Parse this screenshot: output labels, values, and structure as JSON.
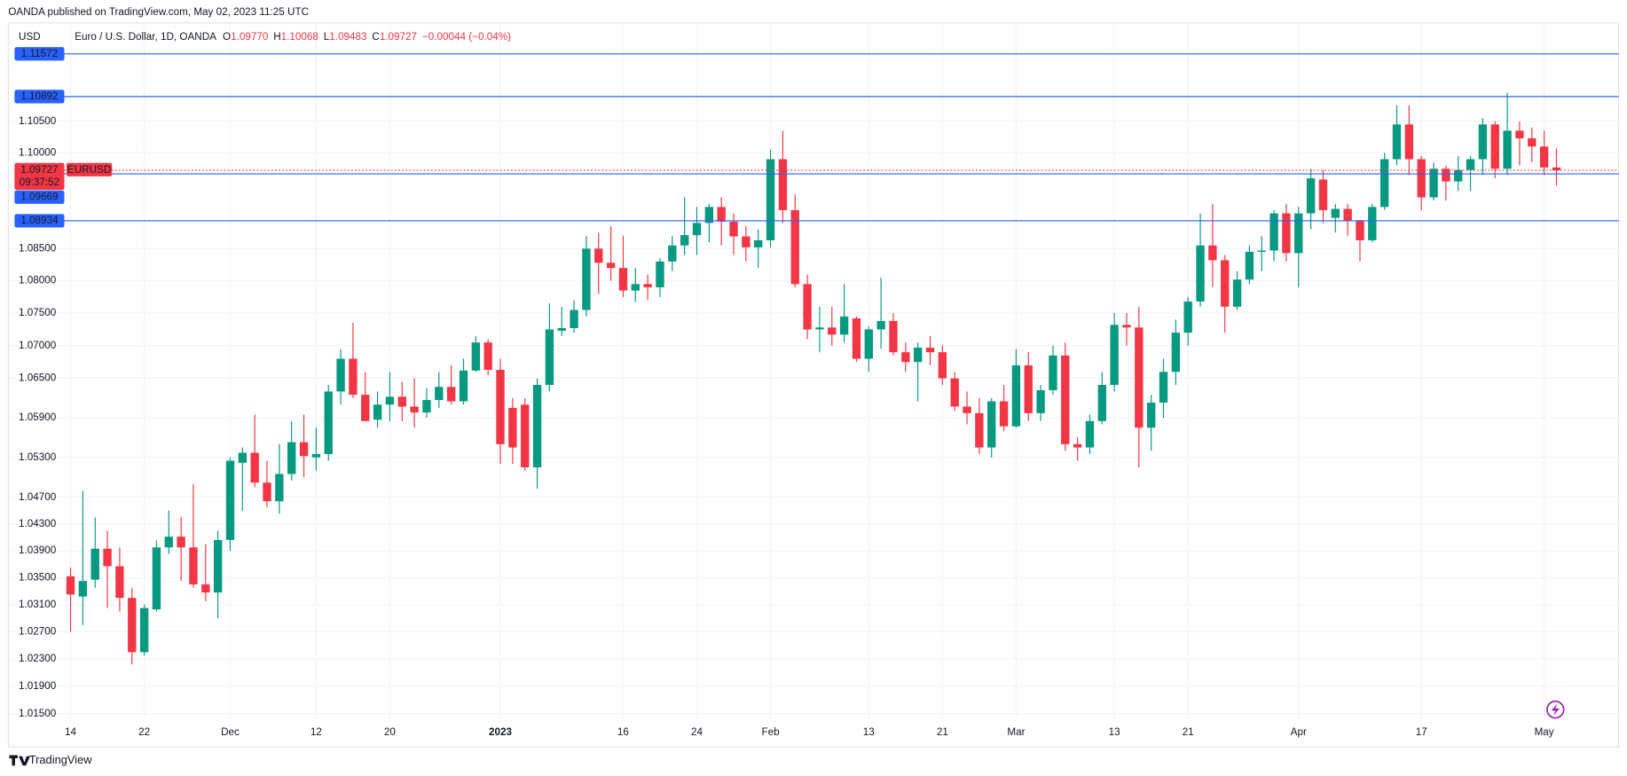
{
  "header": "OANDA published on TradingView.com, May 02, 2023 11:25 UTC",
  "footer": "TradingView",
  "chart_data": {
    "type": "candlestick",
    "currency": "USD",
    "symbol": "Euro / U.S. Dollar, 1D, OANDA",
    "legend": {
      "names": [
        "O",
        "H",
        "L",
        "C"
      ],
      "values": [
        1.0977,
        1.10068,
        1.09483,
        1.09727
      ],
      "value_labels": [
        "1.09770",
        "1.10068",
        "1.09483",
        "1.09727"
      ],
      "change": "−0.00044 (−0.04%)"
    },
    "up_color": "#089981",
    "down_color": "#f23645",
    "log_scale": true,
    "grid": true,
    "ylim": [
      1.0147,
      1.1177
    ],
    "yticks": [
      {
        "value": 1.015,
        "label": "1.01500"
      },
      {
        "value": 1.019,
        "label": "1.01900"
      },
      {
        "value": 1.023,
        "label": "1.02300"
      },
      {
        "value": 1.027,
        "label": "1.02700"
      },
      {
        "value": 1.031,
        "label": "1.03100"
      },
      {
        "value": 1.035,
        "label": "1.03500"
      },
      {
        "value": 1.039,
        "label": "1.03900"
      },
      {
        "value": 1.043,
        "label": "1.04300"
      },
      {
        "value": 1.047,
        "label": "1.04700"
      },
      {
        "value": 1.053,
        "label": "1.05300"
      },
      {
        "value": 1.059,
        "label": "1.05900"
      },
      {
        "value": 1.065,
        "label": "1.06500"
      },
      {
        "value": 1.07,
        "label": "1.07000"
      },
      {
        "value": 1.075,
        "label": "1.07500"
      },
      {
        "value": 1.08,
        "label": "1.08000"
      },
      {
        "value": 1.085,
        "label": "1.08500"
      },
      {
        "value": 1.1,
        "label": "1.10000"
      },
      {
        "value": 1.105,
        "label": "1.10500"
      }
    ],
    "categories": [
      "14",
      null,
      null,
      null,
      null,
      null,
      "22",
      null,
      null,
      null,
      null,
      null,
      null,
      "Dec",
      null,
      null,
      null,
      null,
      null,
      null,
      "12",
      null,
      null,
      null,
      null,
      null,
      "20",
      null,
      null,
      null,
      null,
      null,
      null,
      null,
      null,
      "2023",
      null,
      null,
      null,
      null,
      null,
      null,
      null,
      null,
      null,
      "16",
      null,
      null,
      null,
      null,
      null,
      "24",
      null,
      null,
      null,
      null,
      null,
      "Feb",
      null,
      null,
      null,
      null,
      null,
      null,
      null,
      "13",
      null,
      null,
      null,
      null,
      null,
      "21",
      null,
      null,
      null,
      null,
      null,
      "Mar",
      null,
      null,
      null,
      null,
      null,
      null,
      null,
      "13",
      null,
      null,
      null,
      null,
      null,
      "21",
      null,
      null,
      null,
      null,
      null,
      null,
      null,
      null,
      "Apr",
      null,
      null,
      null,
      null,
      null,
      null,
      null,
      null,
      null,
      "17",
      null,
      null,
      null,
      null,
      null,
      null,
      null,
      null,
      null,
      "May",
      null
    ],
    "open": [
      1.0352,
      1.0322,
      1.0347,
      1.0393,
      1.0367,
      1.032,
      1.024,
      1.0303,
      1.0395,
      1.0411,
      1.0395,
      1.034,
      1.0328,
      1.0406,
      1.0522,
      1.0537,
      1.0492,
      1.0464,
      1.0505,
      1.0553,
      1.053,
      1.0535,
      1.063,
      1.068,
      1.0625,
      1.0587,
      1.061,
      1.0622,
      1.0607,
      1.0598,
      1.0617,
      1.0637,
      1.0615,
      1.0662,
      1.0705,
      1.0663,
      1.0605,
      1.061,
      1.0515,
      1.064,
      1.0723,
      1.0727,
      1.0755,
      1.085,
      1.0828,
      1.082,
      1.0785,
      1.0795,
      1.079,
      1.083,
      1.0855,
      1.0871,
      1.089,
      1.0915,
      1.0892,
      1.0869,
      1.0852,
      1.0863,
      1.099,
      1.091,
      1.0795,
      1.0725,
      1.0728,
      1.0717,
      1.0742,
      1.068,
      1.0725,
      1.0738,
      1.069,
      1.0675,
      1.0697,
      1.069,
      1.065,
      1.0607,
      1.0597,
      1.0545,
      1.0615,
      1.0577,
      1.067,
      1.0597,
      1.0632,
      1.0685,
      1.055,
      1.0545,
      1.0585,
      1.064,
      1.0732,
      1.0728,
      1.0575,
      1.0613,
      1.066,
      1.072,
      1.0768,
      1.0855,
      1.0832,
      1.076,
      1.0802,
      1.0845,
      1.0847,
      1.0905,
      1.0843,
      1.0905,
      1.0958,
      1.0898,
      1.0912,
      1.0893,
      1.0863,
      1.0915,
      1.099,
      1.1045,
      1.099,
      1.093,
      1.0975,
      1.0955,
      1.0973,
      1.099,
      1.1045,
      1.0975,
      1.1035,
      1.1023,
      1.101,
      1.0977
    ],
    "high": [
      1.0365,
      1.048,
      1.044,
      1.042,
      1.0395,
      1.0335,
      1.031,
      1.0405,
      1.045,
      1.044,
      1.049,
      1.04,
      1.042,
      1.053,
      1.0545,
      1.0595,
      1.0525,
      1.055,
      1.0585,
      1.0595,
      1.0575,
      1.064,
      1.0695,
      1.0735,
      1.066,
      1.063,
      1.066,
      1.0645,
      1.065,
      1.0635,
      1.066,
      1.067,
      1.068,
      1.0715,
      1.071,
      1.068,
      1.062,
      1.062,
      1.065,
      1.0765,
      1.076,
      1.077,
      1.087,
      1.0875,
      1.0885,
      1.087,
      1.082,
      1.081,
      1.0835,
      1.087,
      1.093,
      1.0915,
      1.092,
      1.093,
      1.0905,
      1.0885,
      1.088,
      1.1005,
      1.1035,
      1.0935,
      1.081,
      1.076,
      1.076,
      1.0795,
      1.0745,
      1.073,
      1.0805,
      1.075,
      1.0705,
      1.0705,
      1.0715,
      1.07,
      1.066,
      1.063,
      1.062,
      1.062,
      1.064,
      1.0695,
      1.069,
      1.064,
      1.07,
      1.0705,
      1.056,
      1.0595,
      1.066,
      1.075,
      1.075,
      1.076,
      1.0625,
      1.068,
      1.074,
      1.0775,
      1.0905,
      1.092,
      1.084,
      1.0815,
      1.0855,
      1.087,
      1.091,
      1.092,
      1.0915,
      1.0975,
      1.0973,
      1.092,
      1.092,
      1.0895,
      1.092,
      1.1,
      1.1075,
      1.1075,
      1.0995,
      1.0985,
      1.098,
      1.0995,
      1.0995,
      1.1055,
      1.105,
      1.1095,
      1.105,
      1.104,
      1.1035,
      1.10068
    ],
    "low": [
      1.027,
      1.028,
      1.0335,
      1.0305,
      1.03,
      1.0222,
      1.0235,
      1.03,
      1.0385,
      1.0345,
      1.0335,
      1.0315,
      1.029,
      1.039,
      1.045,
      1.0485,
      1.0455,
      1.0445,
      1.0495,
      1.05,
      1.051,
      1.0525,
      1.061,
      1.062,
      1.0585,
      1.0575,
      1.0585,
      1.0585,
      1.0575,
      1.059,
      1.0605,
      1.061,
      1.061,
      1.066,
      1.0655,
      1.052,
      1.052,
      1.051,
      1.0483,
      1.063,
      1.0715,
      1.072,
      1.0745,
      1.078,
      1.08,
      1.0775,
      1.0767,
      1.077,
      1.0775,
      1.0815,
      1.084,
      1.084,
      1.086,
      1.0855,
      1.084,
      1.083,
      1.082,
      1.0852,
      1.089,
      1.079,
      1.071,
      1.069,
      1.07,
      1.0705,
      1.0675,
      1.066,
      1.0695,
      1.0685,
      1.066,
      1.0615,
      1.067,
      1.064,
      1.06,
      1.058,
      1.0535,
      1.053,
      1.057,
      1.0575,
      1.0585,
      1.0585,
      1.0625,
      1.054,
      1.0525,
      1.0535,
      1.058,
      1.063,
      1.07,
      1.0515,
      1.054,
      1.059,
      1.064,
      1.07,
      1.076,
      1.079,
      1.072,
      1.0755,
      1.0795,
      1.0815,
      1.083,
      1.083,
      1.079,
      1.088,
      1.089,
      1.0875,
      1.087,
      1.083,
      1.086,
      1.091,
      1.098,
      1.0965,
      1.091,
      1.0925,
      1.0925,
      1.094,
      1.094,
      1.0965,
      1.096,
      1.0965,
      1.098,
      1.0985,
      1.0965,
      1.09483
    ],
    "close": [
      1.0325,
      1.0345,
      1.0393,
      1.0367,
      1.032,
      1.024,
      1.0305,
      1.0395,
      1.0411,
      1.0395,
      1.034,
      1.0328,
      1.0406,
      1.0525,
      1.0537,
      1.0492,
      1.0464,
      1.0505,
      1.0553,
      1.0532,
      1.0535,
      1.063,
      1.068,
      1.0625,
      1.0585,
      1.061,
      1.0622,
      1.0607,
      1.0598,
      1.0617,
      1.0637,
      1.0615,
      1.0662,
      1.0705,
      1.0663,
      1.055,
      1.0545,
      1.0515,
      1.064,
      1.0725,
      1.0727,
      1.0755,
      1.085,
      1.0828,
      1.082,
      1.0785,
      1.0795,
      1.079,
      1.083,
      1.0855,
      1.0871,
      1.089,
      1.0915,
      1.0892,
      1.0869,
      1.0852,
      1.0863,
      1.099,
      1.091,
      1.0795,
      1.0725,
      1.0728,
      1.0717,
      1.0745,
      1.068,
      1.0725,
      1.0738,
      1.069,
      1.0675,
      1.0697,
      1.069,
      1.065,
      1.0607,
      1.0597,
      1.0545,
      1.0615,
      1.0577,
      1.067,
      1.0597,
      1.0632,
      1.0685,
      1.055,
      1.0545,
      1.0585,
      1.064,
      1.0732,
      1.0728,
      1.0575,
      1.0613,
      1.066,
      1.072,
      1.0768,
      1.0855,
      1.0832,
      1.076,
      1.0802,
      1.0845,
      1.0847,
      1.0905,
      1.0843,
      1.0905,
      1.096,
      1.091,
      1.0912,
      1.0893,
      1.0863,
      1.0915,
      1.099,
      1.1045,
      1.099,
      1.093,
      1.0975,
      1.0955,
      1.0973,
      1.099,
      1.1045,
      1.0975,
      1.1035,
      1.1023,
      1.101,
      1.0977,
      1.09727
    ],
    "price_lines": [
      1.11572,
      1.10892,
      1.09669,
      1.08934
    ],
    "price_line_color": "#2962ff",
    "last_price": {
      "value": 1.09727,
      "symbol": "EURUSD",
      "countdown": "09:37:52",
      "color": "#f23645"
    }
  }
}
